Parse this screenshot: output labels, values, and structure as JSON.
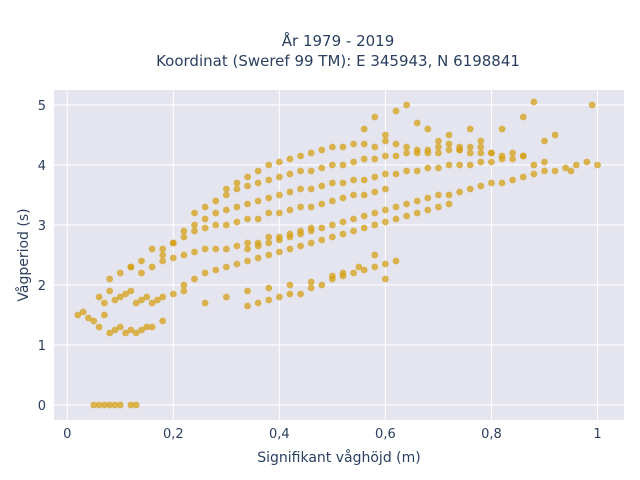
{
  "chart_data": {
    "type": "scatter",
    "title_line1": "År 1979 - 2019",
    "title_line2": "Koordinat (Sweref 99 TM): E 345943, N 6198841",
    "xlabel": "Signifikant våghöjd (m)",
    "ylabel": "Vågperiod (s)",
    "xlim": [
      -0.025,
      1.05
    ],
    "ylim": [
      -0.25,
      5.25
    ],
    "x_ticks": [
      0,
      0.2,
      0.4,
      0.6,
      0.8,
      1
    ],
    "x_tick_labels": [
      "0",
      "0,2",
      "0,4",
      "0,6",
      "0,8",
      "1"
    ],
    "y_ticks": [
      0,
      1,
      2,
      3,
      4,
      5
    ],
    "y_tick_labels": [
      "0",
      "1",
      "2",
      "3",
      "4",
      "5"
    ],
    "grid": true,
    "marker_color": "#d4a017",
    "plot_background": "#e5e5f0",
    "series": [
      {
        "x": [
          0.05,
          0.06,
          0.07,
          0.08,
          0.09,
          0.1,
          0.12,
          0.13,
          0.02,
          0.03,
          0.04,
          0.05,
          0.06,
          0.07,
          0.08,
          0.09,
          0.1,
          0.11,
          0.12,
          0.13,
          0.14,
          0.15,
          0.16,
          0.18,
          0.06,
          0.07,
          0.08,
          0.09,
          0.1,
          0.11,
          0.12,
          0.13,
          0.14,
          0.15,
          0.16,
          0.17,
          0.18,
          0.2,
          0.22,
          0.08,
          0.1,
          0.12,
          0.14,
          0.16,
          0.18,
          0.2,
          0.22,
          0.24,
          0.26,
          0.28,
          0.3,
          0.32,
          0.34,
          0.36,
          0.38,
          0.4,
          0.42,
          0.44,
          0.46,
          0.12,
          0.14,
          0.16,
          0.18,
          0.2,
          0.22,
          0.24,
          0.26,
          0.28,
          0.3,
          0.32,
          0.34,
          0.36,
          0.38,
          0.4,
          0.42,
          0.44,
          0.46,
          0.48,
          0.5,
          0.52,
          0.54,
          0.56,
          0.58,
          0.6,
          0.18,
          0.2,
          0.22,
          0.24,
          0.26,
          0.28,
          0.3,
          0.32,
          0.34,
          0.36,
          0.38,
          0.4,
          0.42,
          0.44,
          0.46,
          0.48,
          0.5,
          0.52,
          0.54,
          0.56,
          0.58,
          0.6,
          0.62,
          0.64,
          0.66,
          0.68,
          0.7,
          0.72,
          0.74,
          0.76,
          0.78,
          0.8,
          0.24,
          0.26,
          0.28,
          0.3,
          0.32,
          0.34,
          0.36,
          0.38,
          0.4,
          0.42,
          0.44,
          0.46,
          0.48,
          0.5,
          0.52,
          0.54,
          0.56,
          0.58,
          0.6,
          0.62,
          0.64,
          0.66,
          0.68,
          0.7,
          0.72,
          0.74,
          0.76,
          0.78,
          0.8,
          0.82,
          0.84,
          0.86,
          0.3,
          0.32,
          0.34,
          0.36,
          0.38,
          0.4,
          0.42,
          0.44,
          0.46,
          0.48,
          0.5,
          0.52,
          0.54,
          0.56,
          0.58,
          0.6,
          0.62,
          0.64,
          0.66,
          0.68,
          0.7,
          0.72,
          0.74,
          0.76,
          0.78,
          0.8,
          0.82,
          0.84,
          0.86,
          0.88,
          0.9,
          0.22,
          0.24,
          0.26,
          0.28,
          0.3,
          0.32,
          0.34,
          0.36,
          0.38,
          0.4,
          0.42,
          0.44,
          0.46,
          0.48,
          0.5,
          0.52,
          0.54,
          0.56,
          0.58,
          0.6,
          0.62,
          0.64,
          0.66,
          0.68,
          0.7,
          0.72,
          0.34,
          0.36,
          0.38,
          0.4,
          0.42,
          0.44,
          0.46,
          0.48,
          0.5,
          0.52,
          0.54,
          0.56,
          0.58,
          0.6,
          0.62,
          0.64,
          0.66,
          0.68,
          0.7,
          0.72,
          0.74,
          0.76,
          0.78,
          0.8,
          0.82,
          0.84,
          0.86,
          0.88,
          0.9,
          0.92,
          0.94,
          0.96,
          0.98,
          1.0,
          0.56,
          0.58,
          0.6,
          0.62,
          0.64,
          0.66,
          0.68,
          0.7,
          0.72,
          0.74,
          0.76,
          0.78,
          0.82,
          0.86,
          0.88,
          0.9,
          0.92,
          0.95,
          0.99,
          0.26,
          0.3,
          0.34,
          0.38,
          0.42,
          0.46,
          0.5,
          0.52,
          0.54,
          0.56,
          0.58,
          0.6,
          0.62,
          0.6,
          0.58,
          0.55,
          0.52,
          0.5,
          0.48,
          0.46,
          0.44,
          0.42,
          0.4,
          0.38,
          0.36,
          0.34
        ],
        "y": [
          0,
          0,
          0,
          0,
          0,
          0,
          0,
          0,
          1.5,
          1.55,
          1.45,
          1.4,
          1.3,
          1.5,
          1.2,
          1.25,
          1.3,
          1.2,
          1.25,
          1.2,
          1.25,
          1.3,
          1.3,
          1.4,
          1.8,
          1.7,
          1.9,
          1.75,
          1.8,
          1.85,
          1.9,
          1.7,
          1.75,
          1.8,
          1.7,
          1.75,
          1.8,
          1.85,
          1.9,
          2.1,
          2.2,
          2.3,
          2.2,
          2.3,
          2.4,
          2.45,
          2.5,
          2.55,
          2.6,
          2.6,
          2.6,
          2.65,
          2.7,
          2.7,
          2.8,
          2.8,
          2.85,
          2.9,
          2.95,
          2.3,
          2.4,
          2.6,
          2.6,
          2.7,
          2.8,
          2.9,
          2.95,
          3.0,
          3.0,
          3.05,
          3.1,
          3.1,
          3.2,
          3.2,
          3.25,
          3.3,
          3.3,
          3.35,
          3.4,
          3.45,
          3.5,
          3.5,
          3.55,
          3.6,
          2.5,
          2.7,
          2.9,
          3.0,
          3.1,
          3.2,
          3.25,
          3.3,
          3.35,
          3.4,
          3.45,
          3.5,
          3.55,
          3.6,
          3.6,
          3.65,
          3.7,
          3.7,
          3.75,
          3.75,
          3.8,
          3.85,
          3.85,
          3.9,
          3.9,
          3.95,
          3.95,
          4.0,
          4.0,
          4.0,
          4.05,
          4.05,
          3.2,
          3.3,
          3.4,
          3.5,
          3.6,
          3.65,
          3.7,
          3.75,
          3.8,
          3.85,
          3.9,
          3.9,
          3.95,
          4.0,
          4.0,
          4.05,
          4.1,
          4.1,
          4.15,
          4.15,
          4.2,
          4.2,
          4.25,
          4.2,
          4.25,
          4.25,
          4.2,
          4.3,
          4.2,
          4.1,
          4.2,
          4.15,
          3.6,
          3.7,
          3.8,
          3.9,
          4.0,
          4.05,
          4.1,
          4.15,
          4.2,
          4.25,
          4.3,
          4.3,
          4.35,
          4.35,
          4.3,
          4.4,
          4.35,
          4.3,
          4.25,
          4.2,
          4.3,
          4.35,
          4.25,
          4.3,
          4.2,
          4.2,
          4.15,
          4.1,
          4.15,
          4.0,
          4.05,
          2.0,
          2.1,
          2.2,
          2.25,
          2.3,
          2.35,
          2.4,
          2.45,
          2.5,
          2.55,
          2.6,
          2.65,
          2.7,
          2.75,
          2.8,
          2.85,
          2.9,
          2.95,
          3.0,
          3.05,
          3.1,
          3.15,
          3.2,
          3.25,
          3.3,
          3.35,
          2.6,
          2.65,
          2.7,
          2.75,
          2.8,
          2.85,
          2.9,
          2.95,
          3.0,
          3.05,
          3.1,
          3.15,
          3.2,
          3.25,
          3.3,
          3.35,
          3.4,
          3.45,
          3.5,
          3.5,
          3.55,
          3.6,
          3.65,
          3.7,
          3.7,
          3.75,
          3.8,
          3.85,
          3.9,
          3.9,
          3.95,
          4.0,
          4.05,
          4.0,
          4.6,
          4.8,
          4.5,
          4.9,
          5.0,
          4.7,
          4.6,
          4.4,
          4.5,
          4.3,
          4.6,
          4.4,
          4.6,
          4.8,
          5.05,
          4.4,
          4.5,
          3.9,
          5.0,
          1.7,
          1.8,
          1.9,
          1.95,
          2.0,
          2.05,
          2.1,
          2.15,
          2.2,
          2.25,
          2.3,
          2.35,
          2.4,
          2.1,
          2.5,
          2.3,
          2.2,
          2.15,
          2.0,
          1.95,
          1.85,
          1.85,
          1.8,
          1.75,
          1.7,
          1.65
        ]
      }
    ]
  }
}
